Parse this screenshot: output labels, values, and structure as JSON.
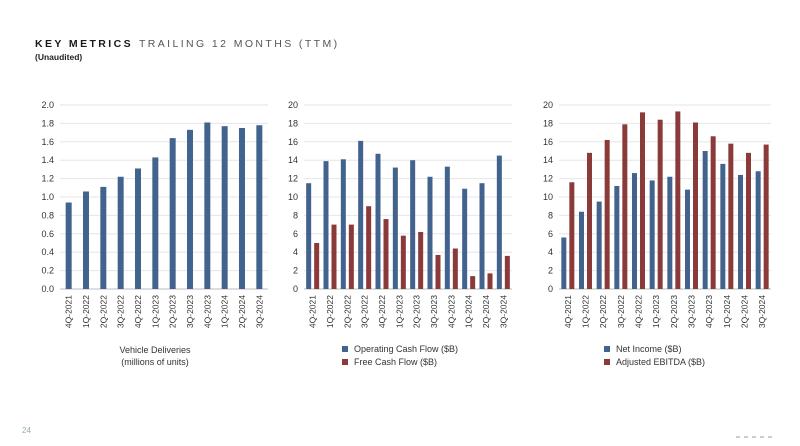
{
  "header": {
    "title_strong": "KEY METRICS",
    "title_light": "TRAILING 12 MONTHS (TTM)",
    "subtitle": "(Unaudited)"
  },
  "page_number": "24",
  "colors": {
    "blue": "#43638f",
    "red": "#8b3a3a",
    "grid": "#e6e6e6",
    "axis": "#bbbbbb"
  },
  "charts": [
    {
      "caption_line1": "Vehicle Deliveries",
      "caption_line2": "(millions of units)"
    },
    {
      "legend": [
        "Operating Cash Flow ($B)",
        "Free Cash Flow ($B)"
      ]
    },
    {
      "legend": [
        "Net Income ($B)",
        "Adjusted EBITDA ($B)"
      ]
    }
  ],
  "chart_data": [
    {
      "type": "bar",
      "categories": [
        "4Q-2021",
        "1Q-2022",
        "2Q-2022",
        "3Q-2022",
        "4Q-2022",
        "1Q-2023",
        "2Q-2023",
        "3Q-2023",
        "4Q-2023",
        "1Q-2024",
        "2Q-2024",
        "3Q-2024"
      ],
      "yticks": [
        "0.0",
        "0.2",
        "0.4",
        "0.6",
        "0.8",
        "1.0",
        "1.2",
        "1.4",
        "1.6",
        "1.8",
        "2.0"
      ],
      "ylim": [
        0,
        2.0
      ],
      "grid": true,
      "series": [
        {
          "name": "Vehicle Deliveries",
          "color": "#43638f",
          "values": [
            0.94,
            1.06,
            1.11,
            1.22,
            1.31,
            1.43,
            1.64,
            1.73,
            1.81,
            1.77,
            1.75,
            1.78
          ]
        }
      ]
    },
    {
      "type": "bar",
      "categories": [
        "4Q-2021",
        "1Q-2022",
        "2Q-2022",
        "3Q-2022",
        "4Q-2022",
        "1Q-2023",
        "2Q-2023",
        "3Q-2023",
        "4Q-2023",
        "1Q-2024",
        "2Q-2024",
        "3Q-2024"
      ],
      "yticks": [
        "0",
        "2",
        "4",
        "6",
        "8",
        "10",
        "12",
        "14",
        "16",
        "18",
        "20"
      ],
      "ylim": [
        0,
        20
      ],
      "grid": true,
      "legend_position": "bottom",
      "series": [
        {
          "name": "Operating Cash Flow ($B)",
          "color": "#43638f",
          "values": [
            11.5,
            13.9,
            14.1,
            16.1,
            14.7,
            13.2,
            14.0,
            12.2,
            13.3,
            10.9,
            11.5,
            14.5
          ]
        },
        {
          "name": "Free Cash Flow ($B)",
          "color": "#8b3a3a",
          "values": [
            5.0,
            7.0,
            7.0,
            9.0,
            7.6,
            5.8,
            6.2,
            3.7,
            4.4,
            1.4,
            1.7,
            3.6
          ]
        }
      ]
    },
    {
      "type": "bar",
      "categories": [
        "4Q-2021",
        "1Q-2022",
        "2Q-2022",
        "3Q-2022",
        "4Q-2022",
        "1Q-2023",
        "2Q-2023",
        "3Q-2023",
        "4Q-2023",
        "1Q-2024",
        "2Q-2024",
        "3Q-2024"
      ],
      "yticks": [
        "0",
        "2",
        "4",
        "6",
        "8",
        "10",
        "12",
        "14",
        "16",
        "18",
        "20"
      ],
      "ylim": [
        0,
        20
      ],
      "grid": true,
      "legend_position": "bottom",
      "series": [
        {
          "name": "Net Income ($B)",
          "color": "#43638f",
          "values": [
            5.6,
            8.4,
            9.5,
            11.2,
            12.6,
            11.8,
            12.2,
            10.8,
            15.0,
            13.6,
            12.4,
            12.8
          ]
        },
        {
          "name": "Adjusted EBITDA ($B)",
          "color": "#8b3a3a",
          "values": [
            11.6,
            14.8,
            16.2,
            17.9,
            19.2,
            18.4,
            19.3,
            18.1,
            16.6,
            15.8,
            14.8,
            15.7
          ]
        }
      ]
    }
  ]
}
